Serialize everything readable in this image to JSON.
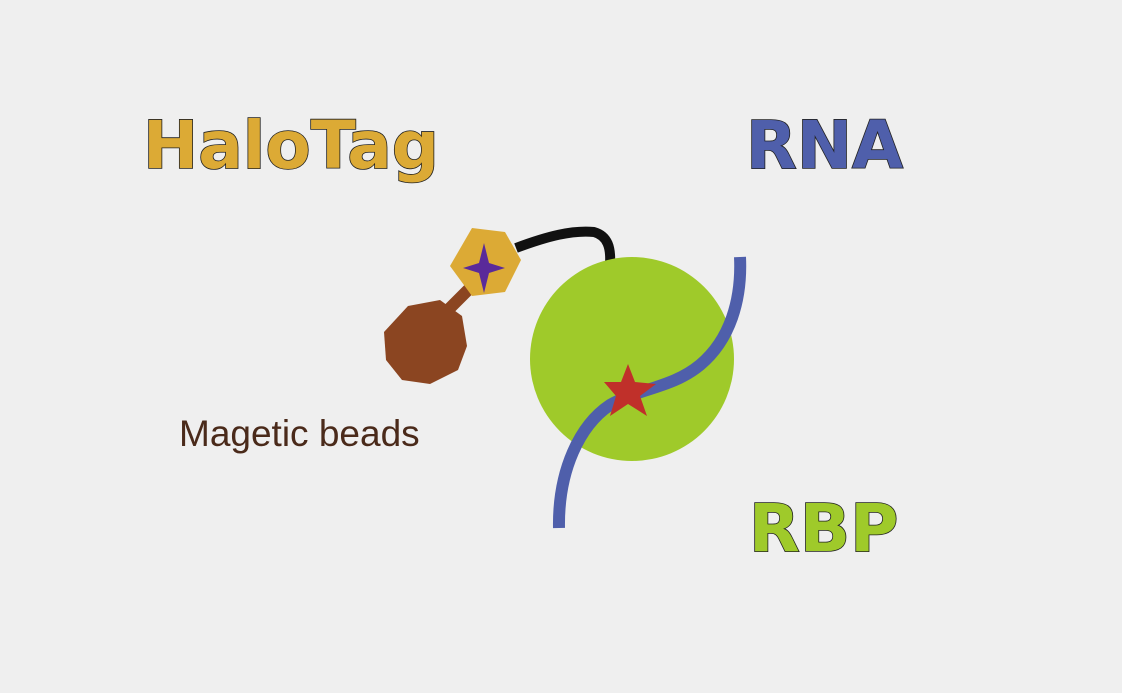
{
  "labels": {
    "halotag": "HaloTag",
    "rna": "RNA",
    "rbp": "RBP",
    "magnetic_beads": "Magetic beads"
  },
  "colors": {
    "background": "#efefef",
    "halotag": "#dcaa35",
    "rna": "#4f5fab",
    "rbp": "#9fca2a",
    "bead": "#8b4521",
    "linker": "#111111",
    "star_red": "#c0302a",
    "star_purple": "#5a2a9a"
  },
  "icons": {
    "bead": "bead-circle-icon",
    "halotag": "hexagon-icon",
    "ligand": "four-point-star-icon",
    "crosslink": "five-point-star-icon"
  }
}
